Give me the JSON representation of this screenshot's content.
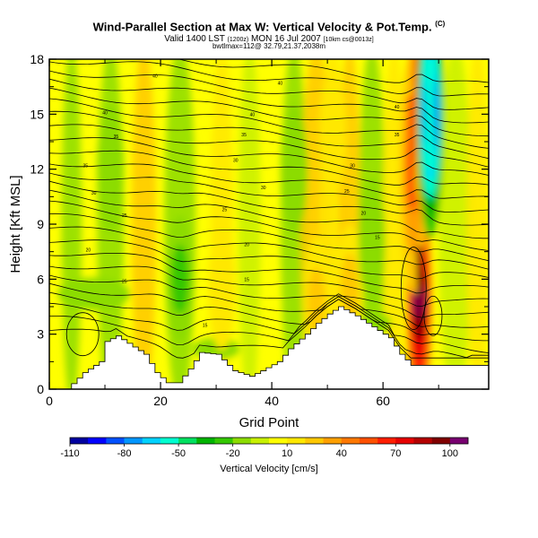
{
  "header": {
    "title_main": "Wind-Parallel Section at Max W: Vertical Velocity & Pot.Temp.",
    "title_unit": "(C)",
    "valid_line": "Valid 1400 LST",
    "valid_run": "(1200z)",
    "valid_date": "MON 16 Jul 2007",
    "valid_grid": "[10km cs@0013z]",
    "location_line": "bwtlmax=112@ 32.79,21.37,2038m"
  },
  "chart_data": {
    "type": "heatmap",
    "title": "Wind-Parallel Section at Max W: Vertical Velocity & Pot.Temp.",
    "xlabel": "Grid Point",
    "ylabel": "Height [Kft MSL]",
    "xlim": [
      0,
      79
    ],
    "ylim": [
      0,
      18
    ],
    "x_ticks": [
      0,
      20,
      40,
      60
    ],
    "y_ticks": [
      0,
      3,
      6,
      9,
      12,
      15,
      18
    ],
    "colorbar": {
      "label": "Vertical Velocity [cm/s]",
      "tick_labels": [
        -110,
        -80,
        -50,
        -20,
        10,
        40,
        70,
        100
      ],
      "range": [
        -110,
        110
      ],
      "colors": [
        "#0000a0",
        "#0000ff",
        "#0050ff",
        "#0096ff",
        "#00d2ff",
        "#00ffd0",
        "#00e060",
        "#00b400",
        "#34c800",
        "#8cdc00",
        "#c8f000",
        "#ffff00",
        "#ffe800",
        "#ffc800",
        "#ffa000",
        "#ff7800",
        "#ff5000",
        "#ff1e00",
        "#e60000",
        "#b40000",
        "#800000",
        "#780070"
      ]
    },
    "terrain_kft": {
      "x": [
        0,
        3,
        6,
        9,
        10,
        12,
        14,
        17,
        19,
        21,
        23,
        25,
        27,
        30,
        33,
        36,
        38,
        41,
        43,
        46,
        48,
        50,
        52,
        55,
        58,
        61,
        63,
        65,
        67,
        69,
        72,
        79
      ],
      "h": [
        0,
        0,
        0.9,
        1.5,
        2.6,
        2.9,
        2.5,
        1.9,
        0.9,
        0.35,
        0.35,
        1.1,
        2.0,
        1.9,
        1.0,
        0.7,
        1.0,
        1.5,
        2.2,
        3.0,
        3.6,
        4.1,
        4.5,
        4.0,
        3.4,
        2.8,
        1.9,
        1.3,
        1.3,
        1.3,
        1.3,
        1.3
      ]
    },
    "updrafts": [
      {
        "x": 66.5,
        "y": 4.8,
        "w": 105
      },
      {
        "x": 65.5,
        "y": 12,
        "w": 45
      },
      {
        "x": 67,
        "y": 17,
        "w": 55
      },
      {
        "x": 48,
        "y": 4.8,
        "w": 28
      },
      {
        "x": 54,
        "y": 5.5,
        "w": 22
      },
      {
        "x": 31,
        "y": 5.6,
        "w": 18
      },
      {
        "x": 51,
        "y": 14,
        "w": 18
      }
    ],
    "downdrafts": [
      {
        "x": 68.5,
        "y": 15,
        "w": -95
      },
      {
        "x": 23.5,
        "y": 6,
        "w": -25
      },
      {
        "x": 11,
        "y": 12,
        "w": -16
      },
      {
        "x": 44,
        "y": 12,
        "w": -16
      },
      {
        "x": 58,
        "y": 8,
        "w": -20
      }
    ],
    "theta_contours_labels": [
      {
        "x": 19,
        "y": 17.1,
        "label": "40"
      },
      {
        "x": 41.5,
        "y": 16.7,
        "label": "40"
      },
      {
        "x": 62.5,
        "y": 15.4,
        "label": "40"
      },
      {
        "x": 10,
        "y": 15.1,
        "label": "40"
      },
      {
        "x": 36.5,
        "y": 15.0,
        "label": "40"
      },
      {
        "x": 12,
        "y": 13.8,
        "label": "35"
      },
      {
        "x": 35,
        "y": 13.9,
        "label": "35"
      },
      {
        "x": 62.5,
        "y": 13.9,
        "label": "35"
      },
      {
        "x": 6.5,
        "y": 12.2,
        "label": "35"
      },
      {
        "x": 33.5,
        "y": 12.5,
        "label": "30"
      },
      {
        "x": 54.5,
        "y": 12.2,
        "label": "30"
      },
      {
        "x": 8,
        "y": 10.7,
        "label": "30"
      },
      {
        "x": 38.5,
        "y": 11.0,
        "label": "30"
      },
      {
        "x": 53.5,
        "y": 10.8,
        "label": "25"
      },
      {
        "x": 31.5,
        "y": 9.8,
        "label": "25"
      },
      {
        "x": 13.5,
        "y": 9.5,
        "label": "25"
      },
      {
        "x": 56.5,
        "y": 9.6,
        "label": "20"
      },
      {
        "x": 7,
        "y": 7.6,
        "label": "20"
      },
      {
        "x": 35.5,
        "y": 7.9,
        "label": "20"
      },
      {
        "x": 59,
        "y": 8.3,
        "label": "15"
      },
      {
        "x": 13.5,
        "y": 5.9,
        "label": "25"
      },
      {
        "x": 35.5,
        "y": 6.0,
        "label": "15"
      },
      {
        "x": 28,
        "y": 3.5,
        "label": "15"
      }
    ]
  }
}
